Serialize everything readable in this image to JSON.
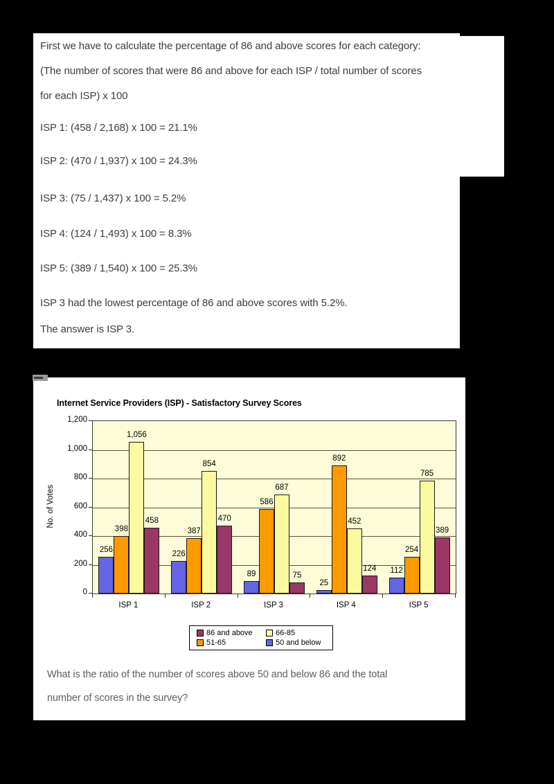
{
  "answer_panel": {
    "lines": [
      "First we have to calculate the percentage of 86 and above scores for each category:",
      "(The number of scores that were 86 and above for each ISP / total number of scores",
      "for each ISP) x 100",
      "ISP 1: (458 / 2,168) x 100 = 21.1%",
      "ISP 2: (470 / 1,937) x 100 = 24.3%",
      "ISP 3: (75 / 1,437) x 100 = 5.2%",
      "ISP 4: (124 / 1,493) x 100 = 8.3%",
      "ISP 5: (389 / 1,540) x 100 = 25.3%",
      "ISP 3 had the lowest percentage of 86 and above scores with 5.2%.",
      "The answer is ISP 3."
    ]
  },
  "chart_panel": {
    "title": "Internet Service Providers (ISP) - Satisfactory Survey Scores",
    "question_lines": [
      "What is the ratio of the number of scores above 50 and below 86 and the total",
      "number of scores in the survey?"
    ]
  },
  "chart_data": {
    "type": "bar",
    "title": "Internet Service Providers (ISP) - Satisfactory Survey Scores",
    "xlabel": "",
    "ylabel": "No. of Votes",
    "categories": [
      "ISP 1",
      "ISP 2",
      "ISP 3",
      "ISP 4",
      "ISP 5"
    ],
    "series": [
      {
        "name": "50 and below",
        "color": "#6464E6",
        "values": [
          256,
          226,
          89,
          25,
          112
        ]
      },
      {
        "name": "51-65",
        "color": "#FF9900",
        "values": [
          398,
          387,
          586,
          892,
          254
        ]
      },
      {
        "name": "66-85",
        "color": "#FCFA9E",
        "values": [
          1056,
          854,
          687,
          452,
          785
        ]
      },
      {
        "name": "86 and above",
        "color": "#9B3766",
        "values": [
          458,
          470,
          75,
          124,
          389
        ]
      }
    ],
    "ylim": [
      0,
      1200
    ],
    "ytick_interval": 200,
    "ytick_labels": [
      "0",
      "200",
      "400",
      "600",
      "800",
      "1,000",
      "1,200"
    ],
    "grid": true,
    "plot_bg": "#FCFCD8",
    "legend_position": "bottom",
    "legend": [
      {
        "label": "86 and above",
        "color": "#9B3766"
      },
      {
        "label": "66-85",
        "color": "#FCFA9E"
      },
      {
        "label": "51-65",
        "color": "#FF9900"
      },
      {
        "label": "50 and below",
        "color": "#6464E6"
      }
    ]
  }
}
